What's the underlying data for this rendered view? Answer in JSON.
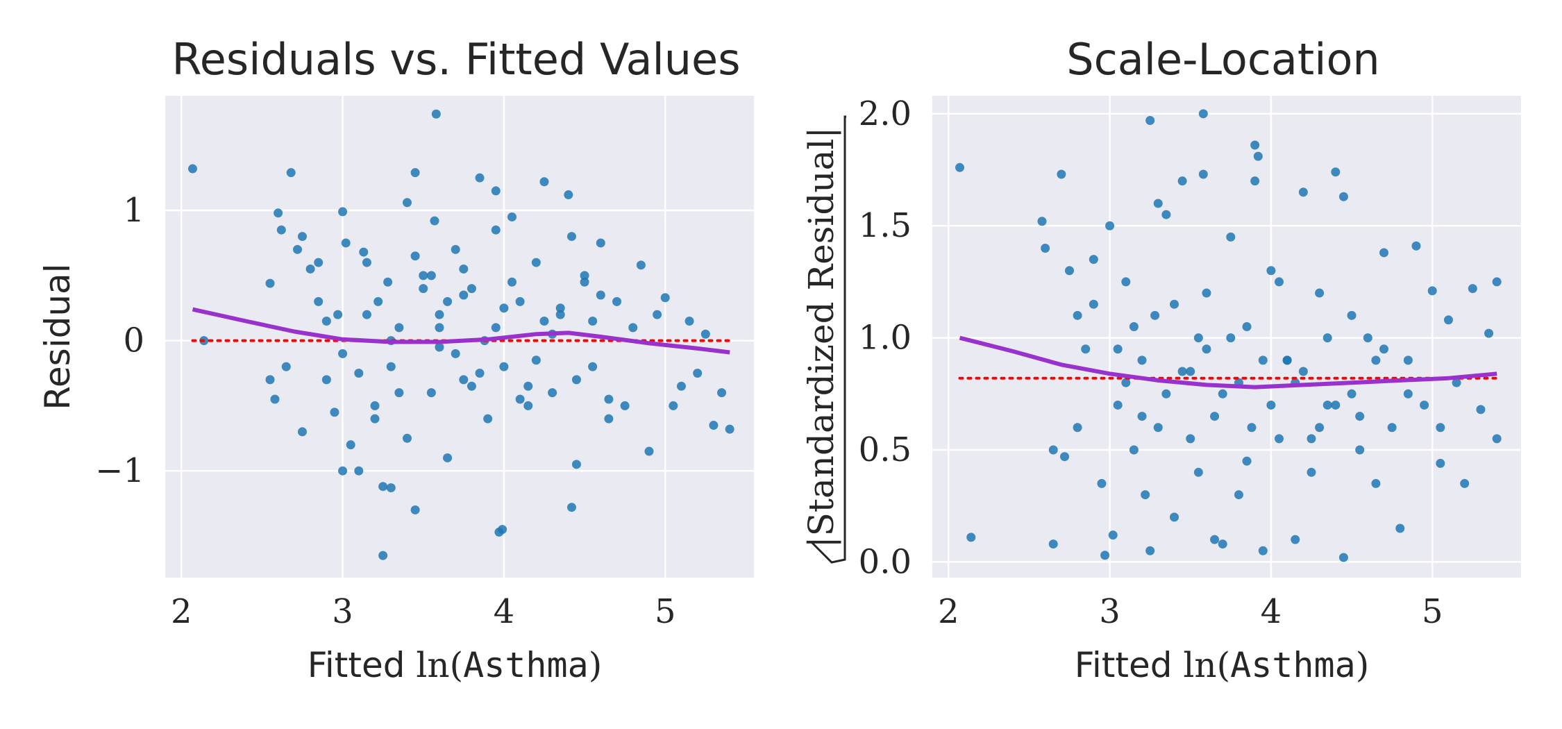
{
  "colors": {
    "background": "#eaeaf2",
    "grid": "#ffffff",
    "points": "#1f77b4",
    "lowess": "#9932cc",
    "reference": "#ff0000",
    "text": "#262626"
  },
  "chart_data": [
    {
      "type": "scatter",
      "title": "Residuals vs. Fitted Values",
      "xlabel": {
        "prefix": "Fitted ",
        "func": "ln(",
        "var": "Asthma",
        "suffix": ")"
      },
      "ylabel": "Residual",
      "xlim": [
        1.9,
        5.55
      ],
      "ylim": [
        -1.82,
        1.88
      ],
      "xticks": [
        2,
        3,
        4,
        5
      ],
      "xtick_labels": [
        "2",
        "3",
        "4",
        "5"
      ],
      "yticks": [
        -1,
        0,
        1
      ],
      "ytick_labels": [
        "−1",
        "0",
        "1"
      ],
      "grid": true,
      "reference_line": {
        "y": 0,
        "x_range": [
          2.07,
          5.4
        ],
        "style": "dotted"
      },
      "lowess": {
        "x": [
          2.07,
          2.4,
          2.7,
          3.0,
          3.3,
          3.6,
          3.9,
          4.2,
          4.4,
          4.6,
          4.9,
          5.2,
          5.4
        ],
        "y": [
          0.24,
          0.15,
          0.07,
          0.01,
          -0.01,
          -0.01,
          0.01,
          0.05,
          0.06,
          0.03,
          -0.02,
          -0.06,
          -0.09
        ]
      },
      "series": [
        {
          "x": [
            2.07,
            2.14,
            2.55,
            2.6,
            2.62,
            2.68,
            2.72,
            2.75,
            2.58,
            2.65,
            2.8,
            2.85,
            2.9,
            2.95,
            3.0,
            3.0,
            3.02,
            3.05,
            3.1,
            3.15,
            3.2,
            3.22,
            3.25,
            3.28,
            3.3,
            3.35,
            3.4,
            3.45,
            3.5,
            3.55,
            3.58,
            3.6,
            3.65,
            3.7,
            3.75,
            3.8,
            3.85,
            3.88,
            3.9,
            3.95,
            4.0,
            4.05,
            4.1,
            4.15,
            4.2,
            4.25,
            4.3,
            4.35,
            4.4,
            4.42,
            4.45,
            4.5,
            4.55,
            4.6,
            4.65,
            4.7,
            4.75,
            4.8,
            4.85,
            4.9,
            4.95,
            5.0,
            5.05,
            5.1,
            5.15,
            5.2,
            5.25,
            5.3,
            5.35,
            5.4,
            3.3,
            3.25,
            3.97,
            3.99,
            4.42,
            3.45,
            3.57,
            3.4,
            3.13,
            3.0,
            2.55,
            2.97,
            3.6,
            3.7,
            4.6,
            4.3,
            2.9,
            3.1,
            3.5,
            3.8,
            4.0,
            4.2,
            3.6,
            3.3,
            3.75,
            4.1,
            2.75,
            2.85,
            3.95,
            4.5,
            3.2,
            3.45,
            3.65,
            3.85,
            4.05,
            4.25,
            4.45,
            4.65,
            3.15,
            3.35,
            3.55,
            3.75,
            3.95,
            4.15,
            4.35,
            4.55
          ],
          "y": [
            1.32,
            0.0,
            0.44,
            0.98,
            0.85,
            1.29,
            0.7,
            0.8,
            -0.45,
            -0.2,
            0.55,
            0.3,
            -0.3,
            -0.55,
            0.99,
            -0.1,
            0.75,
            -0.8,
            -1.0,
            0.6,
            -0.5,
            0.3,
            -1.12,
            0.45,
            -0.2,
            0.1,
            -0.75,
            1.29,
            0.5,
            -0.4,
            1.74,
            0.2,
            -0.9,
            0.7,
            -0.3,
            0.4,
            1.25,
            0.0,
            -0.6,
            0.85,
            -0.2,
            0.95,
            0.3,
            -0.5,
            0.6,
            1.22,
            -0.4,
            0.2,
            1.12,
            0.8,
            -0.95,
            0.5,
            -0.2,
            0.75,
            -0.6,
            0.3,
            -0.5,
            0.1,
            0.58,
            -0.85,
            0.2,
            0.33,
            -0.5,
            -0.35,
            0.15,
            -0.25,
            0.05,
            -0.65,
            -0.4,
            -0.68,
            -1.13,
            -1.65,
            -1.47,
            -1.45,
            -1.28,
            -1.3,
            0.92,
            1.06,
            0.68,
            -1.0,
            -0.3,
            0.2,
            0.1,
            -0.1,
            0.35,
            0.05,
            0.15,
            -0.25,
            0.4,
            -0.35,
            0.25,
            -0.15,
            -0.05,
            0.0,
            0.55,
            -0.45,
            -0.7,
            0.6,
            1.15,
            0.45,
            -0.6,
            0.65,
            0.3,
            -0.25,
            0.45,
            0.15,
            -0.3,
            -0.45,
            0.2,
            -0.4,
            0.5,
            0.35,
            0.1,
            -0.35,
            0.25,
            0.15
          ]
        }
      ]
    },
    {
      "type": "scatter",
      "title": "Scale-Location",
      "xlabel": {
        "prefix": "Fitted ",
        "func": "ln(",
        "var": "Asthma",
        "suffix": ")"
      },
      "ylabel": "|Standardized Residual|",
      "xlim": [
        1.9,
        5.55
      ],
      "ylim": [
        -0.07,
        2.08
      ],
      "xticks": [
        2,
        3,
        4,
        5
      ],
      "xtick_labels": [
        "2",
        "3",
        "4",
        "5"
      ],
      "yticks": [
        0.0,
        0.5,
        1.0,
        1.5,
        2.0
      ],
      "ytick_labels": [
        "0.0",
        "0.5",
        "1.0",
        "1.5",
        "2.0"
      ],
      "grid": true,
      "reference_line": {
        "y": 0.82,
        "x_range": [
          2.07,
          5.4
        ],
        "style": "dotted"
      },
      "lowess": {
        "x": [
          2.07,
          2.4,
          2.7,
          3.0,
          3.3,
          3.6,
          3.9,
          4.2,
          4.5,
          4.8,
          5.1,
          5.4
        ],
        "y": [
          1.0,
          0.94,
          0.88,
          0.84,
          0.81,
          0.79,
          0.78,
          0.79,
          0.8,
          0.81,
          0.82,
          0.84
        ]
      },
      "series": [
        {
          "x": [
            2.07,
            2.14,
            2.58,
            2.6,
            2.65,
            2.7,
            2.72,
            2.75,
            2.8,
            2.85,
            2.9,
            2.95,
            3.0,
            3.02,
            3.05,
            3.1,
            3.15,
            3.2,
            3.22,
            3.25,
            3.28,
            3.3,
            3.35,
            3.4,
            3.45,
            3.5,
            3.55,
            3.58,
            3.6,
            3.65,
            3.7,
            3.75,
            3.8,
            3.85,
            3.88,
            3.9,
            3.95,
            4.0,
            4.05,
            4.1,
            4.15,
            4.2,
            4.25,
            4.3,
            4.35,
            4.4,
            4.45,
            4.5,
            4.55,
            4.6,
            4.65,
            4.7,
            4.75,
            4.8,
            4.85,
            4.9,
            4.95,
            5.0,
            5.05,
            5.1,
            5.15,
            5.2,
            5.25,
            5.3,
            5.35,
            5.4,
            5.4,
            3.25,
            3.58,
            3.9,
            3.92,
            2.65,
            2.97,
            3.3,
            3.7,
            4.45,
            3.55,
            3.8,
            4.1,
            4.4,
            3.05,
            3.15,
            3.35,
            3.45,
            3.65,
            3.75,
            3.95,
            4.0,
            4.2,
            4.3,
            4.5,
            4.7,
            2.8,
            2.9,
            3.1,
            3.2,
            3.4,
            3.5,
            3.6,
            3.85,
            4.05,
            4.15,
            4.25,
            4.35,
            4.55,
            4.65,
            4.85,
            5.05
          ],
          "y": [
            1.76,
            0.11,
            1.52,
            1.4,
            0.08,
            1.73,
            0.47,
            1.3,
            1.1,
            0.95,
            1.35,
            0.35,
            1.5,
            0.12,
            0.7,
            1.25,
            0.5,
            0.9,
            0.3,
            0.05,
            1.1,
            0.6,
            1.55,
            0.2,
            1.7,
            0.85,
            0.4,
            2.0,
            1.2,
            0.1,
            0.75,
            1.45,
            0.3,
            1.05,
            0.6,
            1.7,
            0.05,
            1.3,
            0.55,
            0.9,
            0.1,
            1.65,
            0.4,
            1.2,
            0.7,
            1.74,
            0.02,
            1.1,
            0.5,
            1.0,
            0.35,
            1.38,
            0.6,
            0.15,
            0.9,
            1.41,
            0.7,
            1.21,
            0.44,
            1.08,
            0.8,
            0.35,
            1.22,
            0.68,
            1.02,
            1.25,
            0.55,
            1.97,
            1.73,
            1.86,
            1.81,
            0.5,
            0.03,
            1.6,
            0.08,
            1.63,
            1.0,
            0.8,
            0.9,
            0.7,
            0.95,
            1.05,
            0.75,
            0.85,
            0.65,
            1.0,
            0.9,
            0.7,
            0.85,
            0.6,
            0.75,
            0.95,
            0.6,
            1.15,
            0.8,
            0.65,
            1.15,
            0.55,
            0.95,
            0.45,
            1.25,
            0.8,
            0.55,
            1.0,
            0.65,
            0.9,
            0.75,
            0.6
          ]
        }
      ]
    }
  ]
}
